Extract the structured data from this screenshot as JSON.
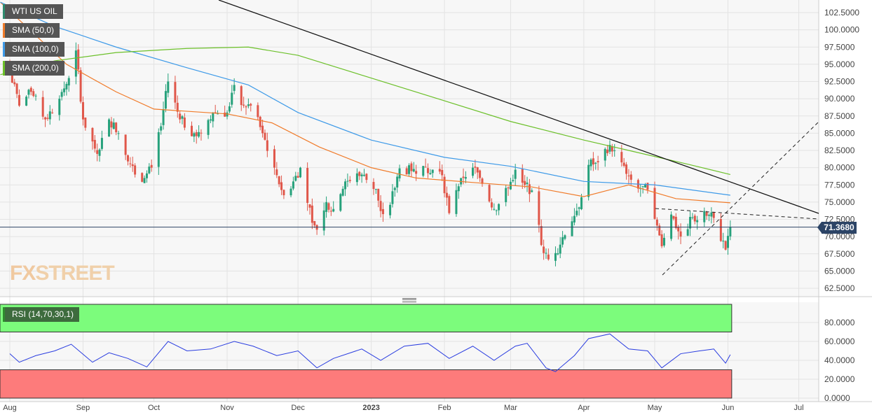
{
  "legend": {
    "symbol": "WTI US OIL",
    "sma50": "SMA (50,0)",
    "sma100": "SMA (100,0)",
    "sma200": "SMA (200,0)",
    "rsi": "RSI (14,70,30,1)"
  },
  "logo": {
    "fx": "FX",
    "street": "STREET"
  },
  "current_price": "71.3680",
  "colors": {
    "up": "#26a17b",
    "down": "#e0574a",
    "sma50": "#f07b2a",
    "sma100": "#3d9ae8",
    "sma200": "#6cc02a",
    "rsi": "#2a3de0",
    "overbought": "#7cfc7c",
    "oversold": "#fd7b7b"
  },
  "chart_data": [
    {
      "type": "candlestick",
      "title": "WTI US OIL",
      "ylim": [
        61,
        104
      ],
      "y_ticks": [
        "102.5000",
        "100.0000",
        "97.5000",
        "95.0000",
        "92.5000",
        "90.0000",
        "87.5000",
        "85.0000",
        "82.5000",
        "80.0000",
        "77.5000",
        "75.0000",
        "72.5000",
        "70.0000",
        "67.5000",
        "65.0000",
        "62.5000"
      ],
      "x_ticks": [
        {
          "label": "Aug",
          "date": "2022-08-01"
        },
        {
          "label": "Sep",
          "date": "2022-09-01"
        },
        {
          "label": "Oct",
          "date": "2022-10-01"
        },
        {
          "label": "Nov",
          "date": "2022-11-01"
        },
        {
          "label": "Dec",
          "date": "2022-12-01"
        },
        {
          "label": "2023",
          "date": "2023-01-01"
        },
        {
          "label": "Feb",
          "date": "2023-02-01"
        },
        {
          "label": "Mar",
          "date": "2023-03-01"
        },
        {
          "label": "Apr",
          "date": "2023-04-01"
        },
        {
          "label": "May",
          "date": "2023-05-01"
        },
        {
          "label": "Jun",
          "date": "2023-06-01"
        },
        {
          "label": "Jul",
          "date": "2023-07-01"
        }
      ],
      "close_anchors": [
        [
          "2022-08-01",
          94
        ],
        [
          "2022-08-05",
          89
        ],
        [
          "2022-08-10",
          91
        ],
        [
          "2022-08-16",
          87
        ],
        [
          "2022-08-22",
          90
        ],
        [
          "2022-08-26",
          93
        ],
        [
          "2022-08-29",
          97
        ],
        [
          "2022-09-01",
          87
        ],
        [
          "2022-09-07",
          82
        ],
        [
          "2022-09-12",
          87
        ],
        [
          "2022-09-16",
          85
        ],
        [
          "2022-09-23",
          79
        ],
        [
          "2022-09-27",
          78.5
        ],
        [
          "2022-09-30",
          80
        ],
        [
          "2022-10-04",
          86
        ],
        [
          "2022-10-07",
          92.5
        ],
        [
          "2022-10-12",
          87
        ],
        [
          "2022-10-18",
          85
        ],
        [
          "2022-10-21",
          85
        ],
        [
          "2022-10-26",
          88
        ],
        [
          "2022-11-01",
          88
        ],
        [
          "2022-11-04",
          92
        ],
        [
          "2022-11-08",
          89
        ],
        [
          "2022-11-11",
          89
        ],
        [
          "2022-11-16",
          85
        ],
        [
          "2022-11-21",
          80
        ],
        [
          "2022-11-25",
          76
        ],
        [
          "2022-11-29",
          78
        ],
        [
          "2022-12-02",
          80
        ],
        [
          "2022-12-07",
          72
        ],
        [
          "2022-12-09",
          71
        ],
        [
          "2022-12-13",
          75
        ],
        [
          "2022-12-16",
          74
        ],
        [
          "2022-12-21",
          78
        ],
        [
          "2022-12-28",
          79
        ],
        [
          "2023-01-03",
          76.9
        ],
        [
          "2023-01-05",
          73.7
        ],
        [
          "2023-01-09",
          74.6
        ],
        [
          "2023-01-13",
          79.9
        ],
        [
          "2023-01-18",
          79.5
        ],
        [
          "2023-01-24",
          80.1
        ],
        [
          "2023-01-27",
          79.7
        ],
        [
          "2023-01-31",
          78.9
        ],
        [
          "2023-02-03",
          73.4
        ],
        [
          "2023-02-08",
          78.5
        ],
        [
          "2023-02-13",
          80
        ],
        [
          "2023-02-16",
          78.5
        ],
        [
          "2023-02-22",
          74
        ],
        [
          "2023-02-28",
          77
        ],
        [
          "2023-03-03",
          79.7
        ],
        [
          "2023-03-07",
          77.5
        ],
        [
          "2023-03-10",
          76.7
        ],
        [
          "2023-03-15",
          67.6
        ],
        [
          "2023-03-17",
          66.7
        ],
        [
          "2023-03-20",
          67.6
        ],
        [
          "2023-03-23",
          69.9
        ],
        [
          "2023-03-28",
          73
        ],
        [
          "2023-03-31",
          75.7
        ],
        [
          "2023-04-03",
          80.4
        ],
        [
          "2023-04-06",
          80.7
        ],
        [
          "2023-04-12",
          83.3
        ],
        [
          "2023-04-14",
          82.5
        ],
        [
          "2023-04-19",
          79.1
        ],
        [
          "2023-04-25",
          77
        ],
        [
          "2023-04-28",
          76.8
        ],
        [
          "2023-05-02",
          71.6
        ],
        [
          "2023-05-04",
          68.6
        ],
        [
          "2023-05-08",
          73.2
        ],
        [
          "2023-05-12",
          70
        ],
        [
          "2023-05-17",
          72.8
        ],
        [
          "2023-05-23",
          73
        ],
        [
          "2023-05-26",
          72.7
        ],
        [
          "2023-05-31",
          68.1
        ],
        [
          "2023-06-01",
          70.1
        ],
        [
          "2023-06-02",
          71.4
        ]
      ],
      "series": [
        {
          "name": "SMA (50,0)",
          "points": [
            [
              "2022-07-28",
              104
            ],
            [
              "2022-08-25",
              95
            ],
            [
              "2022-09-15",
              91
            ],
            [
              "2022-10-01",
              88.5
            ],
            [
              "2022-11-01",
              87.8
            ],
            [
              "2022-11-20",
              86.5
            ],
            [
              "2022-12-10",
              83
            ],
            [
              "2023-01-01",
              80
            ],
            [
              "2023-01-20",
              78.5
            ],
            [
              "2023-02-15",
              77.8
            ],
            [
              "2023-03-10",
              77.2
            ],
            [
              "2023-04-01",
              75.8
            ],
            [
              "2023-04-20",
              77.5
            ],
            [
              "2023-05-10",
              75.5
            ],
            [
              "2023-06-02",
              74.9
            ]
          ]
        },
        {
          "name": "SMA (100,0)",
          "points": [
            [
              "2022-07-28",
              104
            ],
            [
              "2022-08-20",
              100.5
            ],
            [
              "2022-09-15",
              97.5
            ],
            [
              "2022-10-15",
              94.5
            ],
            [
              "2022-11-10",
              92
            ],
            [
              "2022-12-01",
              88
            ],
            [
              "2023-01-01",
              84
            ],
            [
              "2023-02-01",
              81.5
            ],
            [
              "2023-03-01",
              80.2
            ],
            [
              "2023-04-01",
              78
            ],
            [
              "2023-05-01",
              77.5
            ],
            [
              "2023-06-02",
              76
            ]
          ]
        },
        {
          "name": "SMA (200,0)",
          "points": [
            [
              "2022-07-28",
              93.5
            ],
            [
              "2022-08-20",
              95.5
            ],
            [
              "2022-09-15",
              96.7
            ],
            [
              "2022-10-15",
              97.3
            ],
            [
              "2022-11-10",
              97.5
            ],
            [
              "2022-12-01",
              96.3
            ],
            [
              "2023-01-01",
              93
            ],
            [
              "2023-02-01",
              89.7
            ],
            [
              "2023-03-01",
              86.7
            ],
            [
              "2023-04-01",
              84
            ],
            [
              "2023-04-20",
              82.5
            ],
            [
              "2023-05-15",
              80.5
            ],
            [
              "2023-06-02",
              79
            ]
          ]
        }
      ],
      "last_price": 71.368
    },
    {
      "type": "line",
      "title": "RSI (14,70,30,1)",
      "ylim": [
        0,
        100
      ],
      "y_ticks": [
        "80.0000",
        "60.0000",
        "40.0000",
        "20.0000",
        "0.0000"
      ],
      "overbought": 70,
      "oversold": 30,
      "points": [
        [
          "2022-08-01",
          47
        ],
        [
          "2022-08-05",
          38
        ],
        [
          "2022-08-12",
          45
        ],
        [
          "2022-08-20",
          50
        ],
        [
          "2022-08-27",
          57
        ],
        [
          "2022-09-05",
          38
        ],
        [
          "2022-09-12",
          48
        ],
        [
          "2022-09-20",
          42
        ],
        [
          "2022-09-28",
          33
        ],
        [
          "2022-10-07",
          60
        ],
        [
          "2022-10-15",
          50
        ],
        [
          "2022-10-25",
          52
        ],
        [
          "2022-11-04",
          60
        ],
        [
          "2022-11-12",
          55
        ],
        [
          "2022-11-22",
          45
        ],
        [
          "2022-12-01",
          50
        ],
        [
          "2022-12-09",
          32
        ],
        [
          "2022-12-16",
          42
        ],
        [
          "2022-12-28",
          52
        ],
        [
          "2023-01-05",
          40
        ],
        [
          "2023-01-15",
          55
        ],
        [
          "2023-01-25",
          58
        ],
        [
          "2023-02-03",
          42
        ],
        [
          "2023-02-13",
          55
        ],
        [
          "2023-02-22",
          40
        ],
        [
          "2023-03-03",
          55
        ],
        [
          "2023-03-08",
          58
        ],
        [
          "2023-03-16",
          32
        ],
        [
          "2023-03-20",
          28
        ],
        [
          "2023-03-28",
          45
        ],
        [
          "2023-04-03",
          63
        ],
        [
          "2023-04-12",
          68
        ],
        [
          "2023-04-20",
          52
        ],
        [
          "2023-04-28",
          50
        ],
        [
          "2023-05-04",
          32
        ],
        [
          "2023-05-12",
          47
        ],
        [
          "2023-05-20",
          50
        ],
        [
          "2023-05-26",
          52
        ],
        [
          "2023-05-31",
          37
        ],
        [
          "2023-06-02",
          46
        ]
      ]
    }
  ]
}
